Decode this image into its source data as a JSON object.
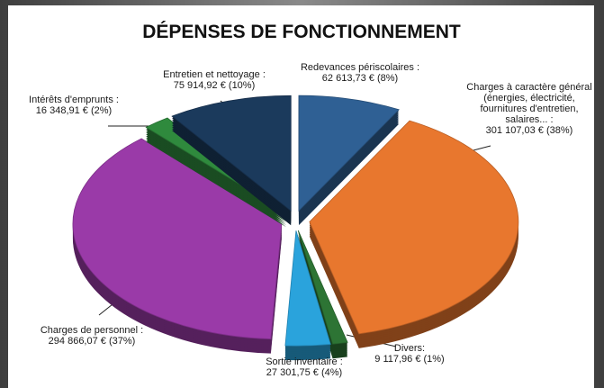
{
  "chart_data": {
    "type": "pie",
    "title": "DÉPENSES DE FONCTIONNEMENT",
    "categories": [
      [
        "Redevances périscolaires :"
      ],
      [
        "Charges à caractère général",
        "(énergies, électricité,",
        "fournitures d'entretien,",
        "salaires... :"
      ],
      [
        "Divers:"
      ],
      [
        "Sortie inventaire :"
      ],
      [
        "Charges de personnel :"
      ],
      [
        "Intérêts d'emprunts :"
      ],
      [
        "Entretien et nettoyage :"
      ]
    ],
    "values": [
      62613.73,
      301107.03,
      9117.96,
      27301.75,
      294866.07,
      16348.91,
      75914.92
    ],
    "value_labels": [
      "62 613,73 € (8%)",
      "301 107,03 € (38%)",
      "9 117,96 € (1%)",
      "27 301,75 € (4%)",
      "294 866,07 € (37%)",
      "16 348,91 € (2%)",
      "75 914,92 € (10%)"
    ],
    "colors": [
      "#2f6094",
      "#e8772e",
      "#2d7434",
      "#2aa3dc",
      "#9a3aa8",
      "#2f8a3d",
      "#1b3a5c"
    ]
  }
}
